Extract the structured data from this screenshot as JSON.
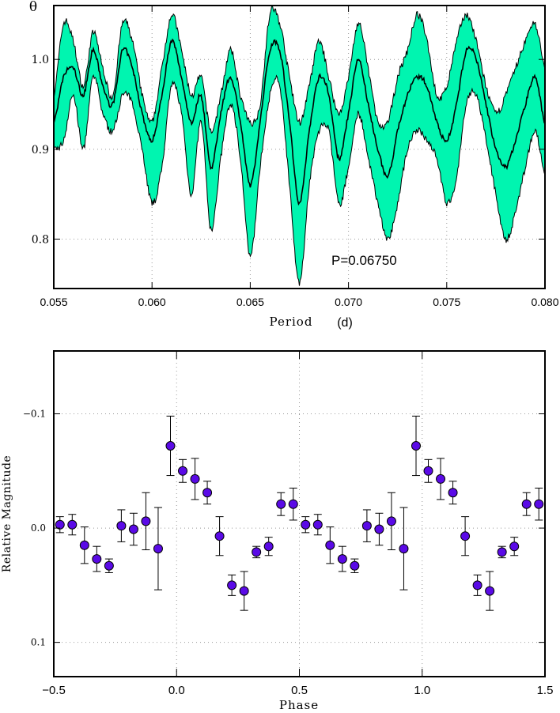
{
  "chart_data": [
    {
      "type": "line",
      "name": "periodogram",
      "ylabel": "θ",
      "xlabel_main": "Period",
      "xlabel_unit": "(d)",
      "annotation": "P=0.06750",
      "xlim": [
        0.055,
        0.08
      ],
      "ylim": [
        0.745,
        1.06
      ],
      "xticks": [
        "0.055",
        "0.060",
        "0.065",
        "0.070",
        "0.075",
        "0.080"
      ],
      "xtick_values": [
        0.055,
        0.06,
        0.065,
        0.07,
        0.075,
        0.08
      ],
      "yticks": [
        "0.8",
        "0.9",
        "1.0"
      ],
      "ytick_values": [
        0.8,
        0.9,
        1.0
      ],
      "band_color": "#00f5b0",
      "line_color": "#000000",
      "series": [
        {
          "x": [
            0.055,
            0.0555,
            0.056,
            0.0565,
            0.057,
            0.0575,
            0.058,
            0.0585,
            0.059,
            0.0595,
            0.06,
            0.0605,
            0.061,
            0.0615,
            0.062,
            0.0625,
            0.063,
            0.0635,
            0.064,
            0.0645,
            0.065,
            0.0655,
            0.066,
            0.0665,
            0.067,
            0.0675,
            0.068,
            0.0685,
            0.069,
            0.0695,
            0.07,
            0.0705,
            0.071,
            0.0715,
            0.072,
            0.0725,
            0.073,
            0.0735,
            0.074,
            0.0745,
            0.075,
            0.0755,
            0.076,
            0.0765,
            0.077,
            0.0775,
            0.078,
            0.0785,
            0.079,
            0.0795,
            0.08
          ],
          "y_mean": [
            0.93,
            0.98,
            0.99,
            0.96,
            1.01,
            0.97,
            0.95,
            1.01,
            0.99,
            0.94,
            0.91,
            0.96,
            1.02,
            0.98,
            0.93,
            0.96,
            0.88,
            0.94,
            0.98,
            0.93,
            0.86,
            0.93,
            1.01,
            1.01,
            0.93,
            0.84,
            0.92,
            0.98,
            0.96,
            0.89,
            0.94,
            1.0,
            0.95,
            0.9,
            0.87,
            0.92,
            0.96,
            0.98,
            0.97,
            0.93,
            0.91,
            0.95,
            1.01,
            1.0,
            0.95,
            0.9,
            0.88,
            0.91,
            0.95,
            0.98,
            0.93
          ],
          "y_upper": [
            0.96,
            1.04,
            1.02,
            0.97,
            1.03,
            0.99,
            0.96,
            1.04,
            1.02,
            0.96,
            0.93,
            0.99,
            1.05,
            1.01,
            0.96,
            0.98,
            0.92,
            0.96,
            1.01,
            0.96,
            0.93,
            0.95,
            1.05,
            1.04,
            0.98,
            0.93,
            0.97,
            1.02,
            0.98,
            0.94,
            0.98,
            1.04,
            0.99,
            0.93,
            0.93,
            0.98,
            1.01,
            1.05,
            1.02,
            0.96,
            0.97,
            1.02,
            1.05,
            1.02,
            0.97,
            0.94,
            0.96,
            0.99,
            1.02,
            1.04,
            0.99
          ],
          "y_lower": [
            0.9,
            0.91,
            0.96,
            0.9,
            0.98,
            0.94,
            0.92,
            0.96,
            0.95,
            0.9,
            0.84,
            0.88,
            0.97,
            0.94,
            0.85,
            0.93,
            0.81,
            0.89,
            0.95,
            0.89,
            0.78,
            0.88,
            0.96,
            0.97,
            0.86,
            0.75,
            0.86,
            0.92,
            0.92,
            0.84,
            0.88,
            0.94,
            0.89,
            0.84,
            0.8,
            0.84,
            0.9,
            0.92,
            0.91,
            0.89,
            0.84,
            0.87,
            0.95,
            0.96,
            0.91,
            0.85,
            0.8,
            0.83,
            0.88,
            0.92,
            0.87
          ]
        }
      ]
    },
    {
      "type": "scatter",
      "name": "phase-curve",
      "xlabel": "Phase",
      "ylabel": "Relative Magnitude",
      "xlim": [
        -0.5,
        1.5
      ],
      "ylim": [
        0.13,
        -0.155
      ],
      "y_inverted": true,
      "xticks": [
        "−0.5",
        "0.0",
        "0.5",
        "1.0",
        "1.5"
      ],
      "xtick_values": [
        -0.5,
        0.0,
        0.5,
        1.0,
        1.5
      ],
      "yticks": [
        "−0.1",
        "0.0",
        "0.1"
      ],
      "ytick_values": [
        -0.1,
        0.0,
        0.1
      ],
      "marker_color": "#5a0ae6",
      "points": [
        {
          "x": -0.475,
          "y": -0.003,
          "err": 0.007
        },
        {
          "x": -0.425,
          "y": -0.003,
          "err": 0.009
        },
        {
          "x": -0.375,
          "y": 0.015,
          "err": 0.016
        },
        {
          "x": -0.325,
          "y": 0.027,
          "err": 0.011
        },
        {
          "x": -0.275,
          "y": 0.033,
          "err": 0.006
        },
        {
          "x": -0.225,
          "y": -0.002,
          "err": 0.014
        },
        {
          "x": -0.175,
          "y": 0.001,
          "err": 0.014
        },
        {
          "x": -0.125,
          "y": -0.006,
          "err": 0.025
        },
        {
          "x": -0.075,
          "y": 0.018,
          "err": 0.036
        },
        {
          "x": -0.025,
          "y": -0.072,
          "err": 0.026
        },
        {
          "x": 0.025,
          "y": -0.05,
          "err": 0.01
        },
        {
          "x": 0.075,
          "y": -0.043,
          "err": 0.018
        },
        {
          "x": 0.125,
          "y": -0.031,
          "err": 0.01
        },
        {
          "x": 0.175,
          "y": 0.007,
          "err": 0.017
        },
        {
          "x": 0.225,
          "y": 0.05,
          "err": 0.009
        },
        {
          "x": 0.275,
          "y": 0.055,
          "err": 0.017
        },
        {
          "x": 0.325,
          "y": 0.021,
          "err": 0.005
        },
        {
          "x": 0.375,
          "y": 0.016,
          "err": 0.008
        },
        {
          "x": 0.425,
          "y": -0.021,
          "err": 0.01
        },
        {
          "x": 0.475,
          "y": -0.021,
          "err": 0.014
        },
        {
          "x": 0.525,
          "y": -0.003,
          "err": 0.007
        },
        {
          "x": 0.575,
          "y": -0.003,
          "err": 0.009
        },
        {
          "x": 0.625,
          "y": 0.015,
          "err": 0.016
        },
        {
          "x": 0.675,
          "y": 0.027,
          "err": 0.011
        },
        {
          "x": 0.725,
          "y": 0.033,
          "err": 0.006
        },
        {
          "x": 0.775,
          "y": -0.002,
          "err": 0.014
        },
        {
          "x": 0.825,
          "y": 0.001,
          "err": 0.014
        },
        {
          "x": 0.875,
          "y": -0.006,
          "err": 0.025
        },
        {
          "x": 0.925,
          "y": 0.018,
          "err": 0.036
        },
        {
          "x": 0.975,
          "y": -0.072,
          "err": 0.026
        },
        {
          "x": 1.025,
          "y": -0.05,
          "err": 0.01
        },
        {
          "x": 1.075,
          "y": -0.043,
          "err": 0.018
        },
        {
          "x": 1.125,
          "y": -0.031,
          "err": 0.01
        },
        {
          "x": 1.175,
          "y": 0.007,
          "err": 0.017
        },
        {
          "x": 1.225,
          "y": 0.05,
          "err": 0.009
        },
        {
          "x": 1.275,
          "y": 0.055,
          "err": 0.017
        },
        {
          "x": 1.325,
          "y": 0.021,
          "err": 0.005
        },
        {
          "x": 1.375,
          "y": 0.016,
          "err": 0.008
        },
        {
          "x": 1.425,
          "y": -0.021,
          "err": 0.01
        },
        {
          "x": 1.475,
          "y": -0.021,
          "err": 0.014
        }
      ]
    }
  ]
}
